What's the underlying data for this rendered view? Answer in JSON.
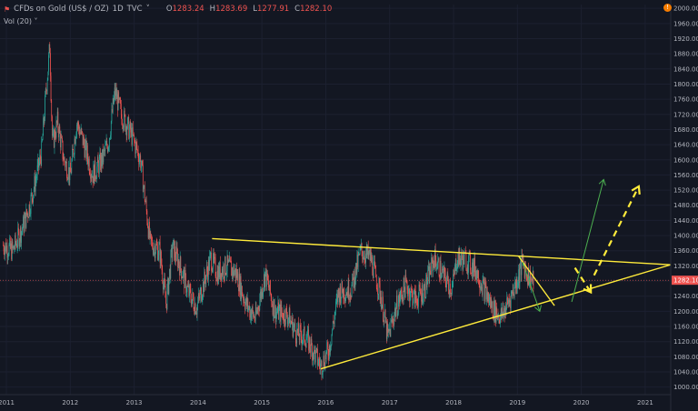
{
  "header": {
    "symbol": "CFDs on Gold (US$ / OZ)",
    "interval": "1D",
    "source": "TVC",
    "dropdown_glyph": "˅",
    "ohlc": [
      {
        "k": "O",
        "v": "1283.24"
      },
      {
        "k": "H",
        "v": "1283.69"
      },
      {
        "k": "L",
        "v": "1277.91"
      },
      {
        "k": "C",
        "v": "1282.10"
      }
    ],
    "volume_label": "Vol (20)",
    "volume_glyph": "˅",
    "symbol_icon": "flag-icon",
    "alert_icon": "alert-icon",
    "alert_glyph": "!"
  },
  "colors": {
    "background": "#131722",
    "up": "#26a69a",
    "down": "#ef5350",
    "trendline": "#ffeb3b",
    "arrow_up": "#4caf50",
    "price_line": "#ef5350"
  },
  "chart_data": {
    "type": "candlestick",
    "x_ticks": [
      "2011",
      "2012",
      "2013",
      "2014",
      "2015",
      "2016",
      "2017",
      "2018",
      "2019",
      "2020",
      "2021"
    ],
    "y_ticks": [
      1000,
      1040,
      1080,
      1120,
      1160,
      1200,
      1240,
      1280,
      1320,
      1360,
      1400,
      1440,
      1480,
      1520,
      1560,
      1600,
      1640,
      1680,
      1720,
      1760,
      1800,
      1840,
      1880,
      1920,
      1960,
      2000
    ],
    "ylim": [
      980,
      2010
    ],
    "xlim": [
      2010.9,
      2021.4
    ],
    "last_price": "1282.10",
    "last_price_value": 1282.1,
    "price_path": [
      [
        2010.95,
        1375
      ],
      [
        2011.1,
        1360
      ],
      [
        2011.25,
        1420
      ],
      [
        2011.35,
        1470
      ],
      [
        2011.45,
        1540
      ],
      [
        2011.55,
        1620
      ],
      [
        2011.62,
        1780
      ],
      [
        2011.68,
        1900
      ],
      [
        2011.72,
        1640
      ],
      [
        2011.8,
        1700
      ],
      [
        2011.9,
        1600
      ],
      [
        2012.0,
        1560
      ],
      [
        2012.1,
        1700
      ],
      [
        2012.2,
        1650
      ],
      [
        2012.35,
        1560
      ],
      [
        2012.5,
        1600
      ],
      [
        2012.6,
        1650
      ],
      [
        2012.7,
        1780
      ],
      [
        2012.8,
        1720
      ],
      [
        2012.95,
        1670
      ],
      [
        2013.1,
        1600
      ],
      [
        2013.25,
        1380
      ],
      [
        2013.4,
        1360
      ],
      [
        2013.5,
        1220
      ],
      [
        2013.6,
        1370
      ],
      [
        2013.7,
        1330
      ],
      [
        2013.85,
        1250
      ],
      [
        2013.98,
        1210
      ],
      [
        2014.1,
        1280
      ],
      [
        2014.2,
        1340
      ],
      [
        2014.3,
        1300
      ],
      [
        2014.45,
        1320
      ],
      [
        2014.6,
        1300
      ],
      [
        2014.75,
        1220
      ],
      [
        2014.9,
        1180
      ],
      [
        2015.05,
        1300
      ],
      [
        2015.2,
        1200
      ],
      [
        2015.4,
        1190
      ],
      [
        2015.55,
        1140
      ],
      [
        2015.7,
        1130
      ],
      [
        2015.92,
        1055
      ],
      [
        2016.05,
        1100
      ],
      [
        2016.2,
        1250
      ],
      [
        2016.4,
        1260
      ],
      [
        2016.55,
        1360
      ],
      [
        2016.7,
        1340
      ],
      [
        2016.85,
        1250
      ],
      [
        2016.97,
        1130
      ],
      [
        2017.1,
        1210
      ],
      [
        2017.25,
        1270
      ],
      [
        2017.4,
        1230
      ],
      [
        2017.55,
        1260
      ],
      [
        2017.7,
        1340
      ],
      [
        2017.85,
        1290
      ],
      [
        2017.98,
        1260
      ],
      [
        2018.05,
        1340
      ],
      [
        2018.2,
        1335
      ],
      [
        2018.35,
        1310
      ],
      [
        2018.5,
        1250
      ],
      [
        2018.62,
        1205
      ],
      [
        2018.75,
        1185
      ],
      [
        2018.9,
        1240
      ],
      [
        2019.0,
        1285
      ],
      [
        2019.08,
        1330
      ],
      [
        2019.15,
        1300
      ],
      [
        2019.25,
        1275
      ]
    ],
    "drawings": [
      {
        "kind": "trendline",
        "color": "#ffeb3b",
        "width": 1.4,
        "from": [
          2014.22,
          1392
        ],
        "to": [
          2021.4,
          1323
        ]
      },
      {
        "kind": "trendline",
        "color": "#ffeb3b",
        "width": 1.4,
        "from": [
          2015.92,
          1048
        ],
        "to": [
          2021.4,
          1323
        ]
      },
      {
        "kind": "trendline",
        "color": "#ffeb3b",
        "width": 1.4,
        "from": [
          2019.02,
          1345
        ],
        "to": [
          2019.58,
          1215
        ]
      },
      {
        "kind": "arrow",
        "color": "#4caf50",
        "width": 1,
        "from": [
          2019.08,
          1330
        ],
        "to": [
          2019.35,
          1200
        ]
      },
      {
        "kind": "arrow",
        "color": "#4caf50",
        "width": 1,
        "from": [
          2019.85,
          1225
        ],
        "to": [
          2020.35,
          1548
        ]
      },
      {
        "kind": "arrow",
        "color": "#ffeb3b",
        "width": 2.2,
        "dashed": true,
        "from": [
          2019.9,
          1315
        ],
        "to": [
          2020.15,
          1250
        ]
      },
      {
        "kind": "arrow",
        "color": "#ffeb3b",
        "width": 2.2,
        "dashed": true,
        "from": [
          2020.2,
          1295
        ],
        "to": [
          2020.9,
          1530
        ]
      }
    ]
  }
}
